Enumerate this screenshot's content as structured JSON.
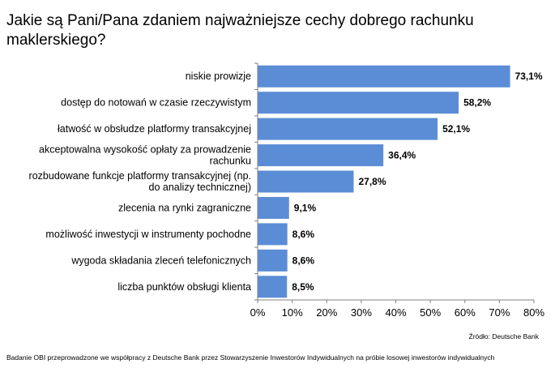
{
  "chart_data": {
    "type": "bar",
    "orientation": "horizontal",
    "title": "Jakie są Pani/Pana zdaniem najważniejsze  cechy dobrego rachunku  maklerskiego?",
    "categories": [
      [
        "niskie prowizje"
      ],
      [
        "dostęp do notowań w czasie rzeczywistym"
      ],
      [
        "łatwość w obsłudze platformy transakcyjnej"
      ],
      [
        "akceptowalna wysokość opłaty za prowadzenie",
        "rachunku"
      ],
      [
        "rozbudowane funkcje platformy transakcyjnej (np.",
        "do analizy technicznej)"
      ],
      [
        "zlecenia na rynki zagraniczne"
      ],
      [
        "możliwość inwestycji w instrumenty pochodne"
      ],
      [
        "wygoda składania zleceń telefonicznych"
      ],
      [
        "liczba punktów obsługi klienta"
      ]
    ],
    "values": [
      73.1,
      58.2,
      52.1,
      36.4,
      27.8,
      9.1,
      8.6,
      8.6,
      8.5
    ],
    "value_labels": [
      "73,1%",
      "58,2%",
      "52,1%",
      "36,4%",
      "27,8%",
      "9,1%",
      "8,6%",
      "8,6%",
      "8,5%"
    ],
    "xlim": [
      0,
      80
    ],
    "xticks": [
      0,
      10,
      20,
      30,
      40,
      50,
      60,
      70,
      80
    ],
    "xtick_labels": [
      "0%",
      "10%",
      "20%",
      "30%",
      "40%",
      "50%",
      "60%",
      "70%",
      "80%"
    ],
    "xlabel": "",
    "ylabel": "",
    "grid": false,
    "bar_color": "#5b8dd6"
  },
  "source": "Źródło: Deutsche Bank",
  "footnote": "Badanie OBI przeprowadzone we współpracy z Deutsche Bank przez Stowarzyszenie Inwestorów Indywidualnych na próbie losowej inwestorów indywidualnych"
}
